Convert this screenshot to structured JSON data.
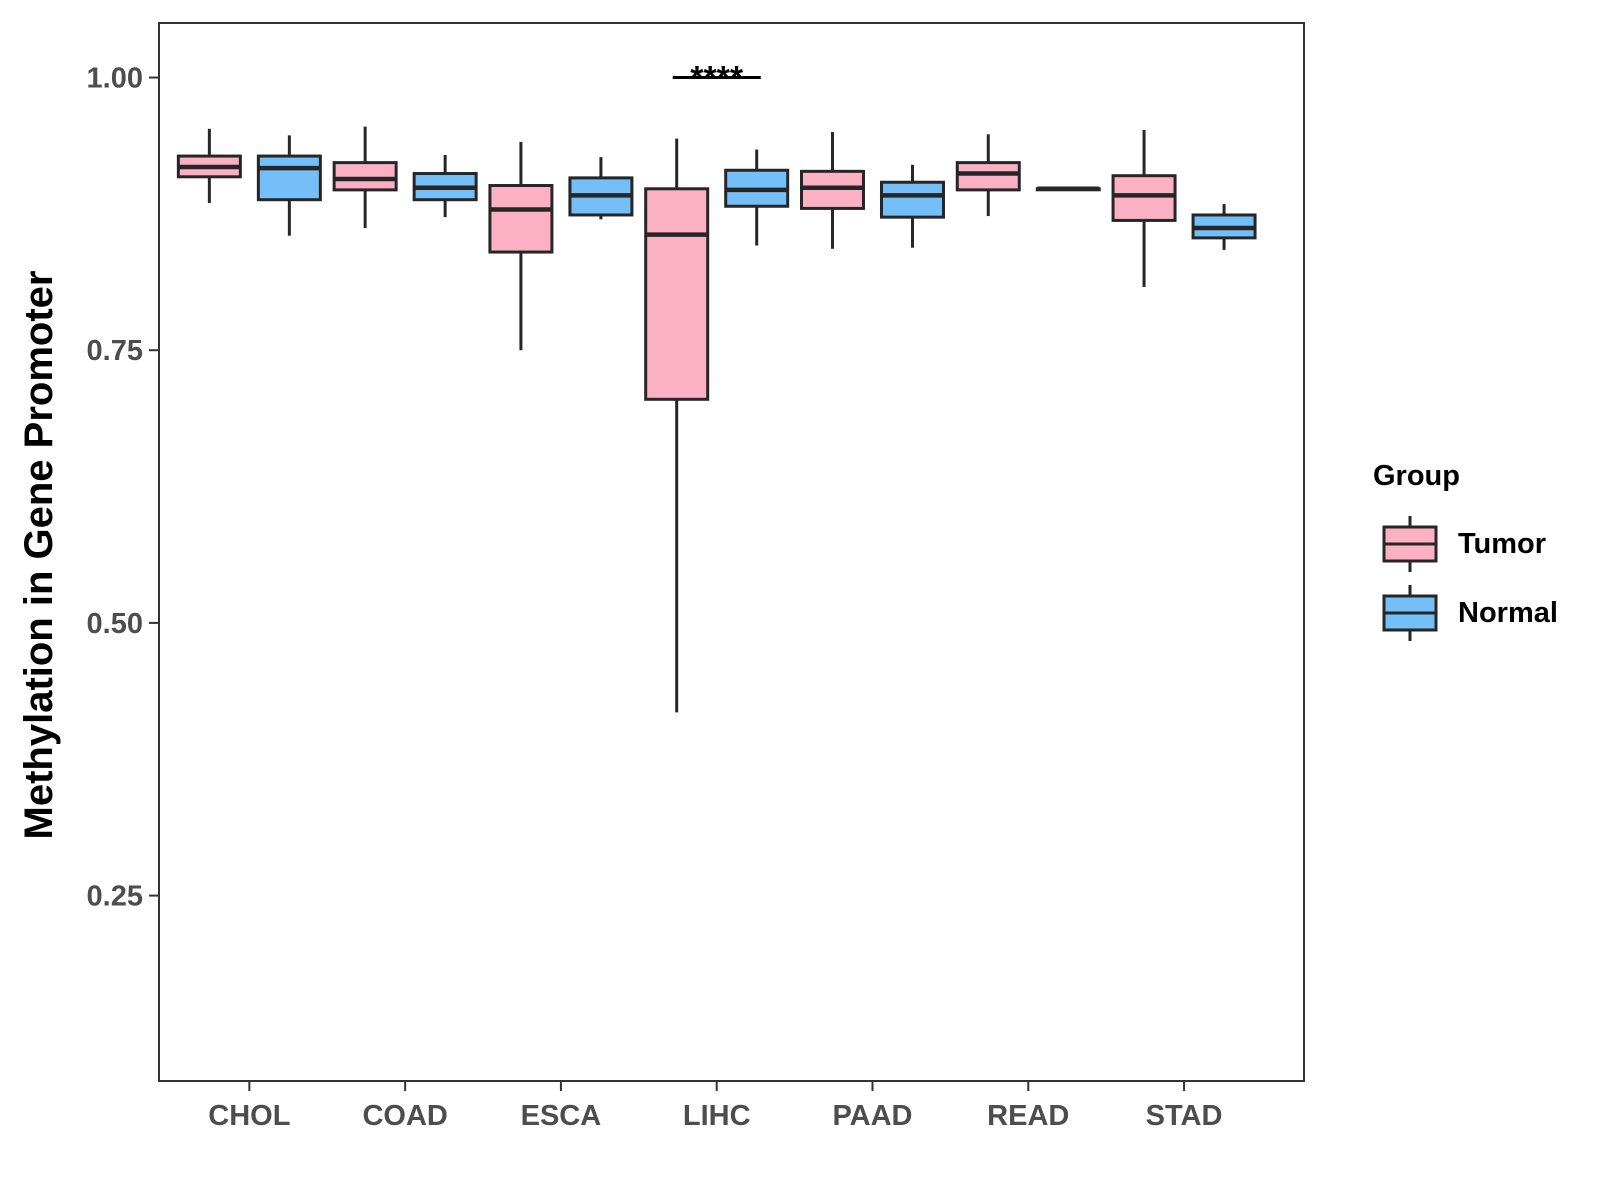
{
  "chart_data": {
    "type": "boxplot",
    "title": "",
    "xlabel": "",
    "ylabel": "Methylation in Gene Promoter",
    "ylim": [
      0.08,
      1.05
    ],
    "yticks": [
      0.25,
      0.5,
      0.75,
      1.0
    ],
    "ytick_labels": [
      "0.25",
      "0.50",
      "0.75",
      "1.00"
    ],
    "categories": [
      "CHOL",
      "COAD",
      "ESCA",
      "LIHC",
      "PAAD",
      "READ",
      "STAD"
    ],
    "legend": {
      "title": "Group",
      "position": "right",
      "entries": [
        "Tumor",
        "Normal"
      ]
    },
    "colors": {
      "Tumor": "#fbb1c3",
      "Normal": "#74bff7",
      "outline": "#262626"
    },
    "series": [
      {
        "name": "Tumor",
        "boxes": [
          {
            "category": "CHOL",
            "whisker_low": 0.885,
            "q1": 0.909,
            "median": 0.918,
            "q3": 0.928,
            "whisker_high": 0.953
          },
          {
            "category": "COAD",
            "whisker_low": 0.862,
            "q1": 0.897,
            "median": 0.907,
            "q3": 0.922,
            "whisker_high": 0.955
          },
          {
            "category": "ESCA",
            "whisker_low": 0.75,
            "q1": 0.84,
            "median": 0.879,
            "q3": 0.901,
            "whisker_high": 0.941
          },
          {
            "category": "LIHC",
            "whisker_low": 0.418,
            "q1": 0.705,
            "median": 0.856,
            "q3": 0.898,
            "whisker_high": 0.944
          },
          {
            "category": "PAAD",
            "whisker_low": 0.843,
            "q1": 0.88,
            "median": 0.899,
            "q3": 0.914,
            "whisker_high": 0.95
          },
          {
            "category": "READ",
            "whisker_low": 0.873,
            "q1": 0.897,
            "median": 0.912,
            "q3": 0.922,
            "whisker_high": 0.948
          },
          {
            "category": "STAD",
            "whisker_low": 0.808,
            "q1": 0.869,
            "median": 0.892,
            "q3": 0.91,
            "whisker_high": 0.952
          }
        ]
      },
      {
        "name": "Normal",
        "boxes": [
          {
            "category": "CHOL",
            "whisker_low": 0.855,
            "q1": 0.888,
            "median": 0.917,
            "q3": 0.928,
            "whisker_high": 0.947
          },
          {
            "category": "COAD",
            "whisker_low": 0.872,
            "q1": 0.888,
            "median": 0.899,
            "q3": 0.912,
            "whisker_high": 0.929
          },
          {
            "category": "ESCA",
            "whisker_low": 0.87,
            "q1": 0.874,
            "median": 0.892,
            "q3": 0.908,
            "whisker_high": 0.927
          },
          {
            "category": "LIHC",
            "whisker_low": 0.846,
            "q1": 0.882,
            "median": 0.897,
            "q3": 0.915,
            "whisker_high": 0.934
          },
          {
            "category": "PAAD",
            "whisker_low": 0.844,
            "q1": 0.872,
            "median": 0.892,
            "q3": 0.904,
            "whisker_high": 0.92
          },
          {
            "category": "READ",
            "whisker_low": 0.898,
            "q1": 0.898,
            "median": 0.898,
            "q3": 0.898,
            "whisker_high": 0.898
          },
          {
            "category": "STAD",
            "whisker_low": 0.842,
            "q1": 0.853,
            "median": 0.862,
            "q3": 0.874,
            "whisker_high": 0.884
          }
        ]
      }
    ],
    "annotations": [
      {
        "category": "LIHC",
        "text": "****",
        "y": 1.0
      }
    ]
  }
}
